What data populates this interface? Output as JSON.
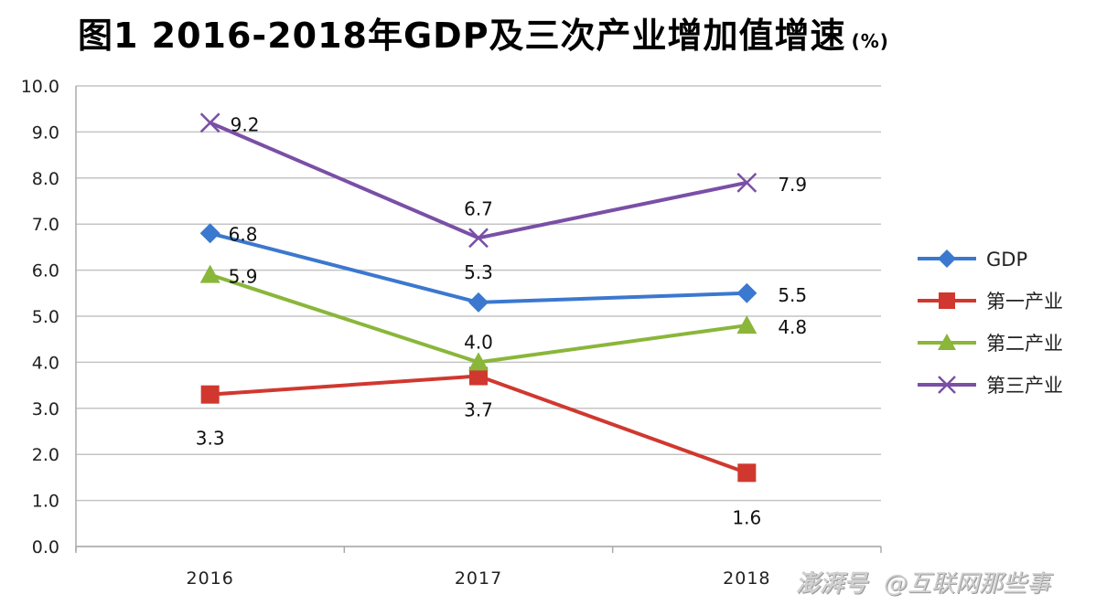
{
  "chart_data": {
    "type": "line",
    "title": "图1   2016-2018年GDP及三次产业增加值增速",
    "title_unit": "(%)",
    "xlabel": "",
    "ylabel": "",
    "categories": [
      "2016",
      "2017",
      "2018"
    ],
    "ylim": [
      0,
      10
    ],
    "yticks": [
      "0.0",
      "1.0",
      "2.0",
      "3.0",
      "4.0",
      "5.0",
      "6.0",
      "7.0",
      "8.0",
      "9.0",
      "10.0"
    ],
    "grid": true,
    "legend_position": "right",
    "series": [
      {
        "name": "GDP",
        "marker": "diamond",
        "color": "#3b78cf",
        "values": [
          6.8,
          5.3,
          5.5
        ],
        "labels": [
          "6.8",
          "5.3",
          "5.5"
        ]
      },
      {
        "name": "第一产业",
        "marker": "square",
        "color": "#d0382f",
        "values": [
          3.3,
          3.7,
          1.6
        ],
        "labels": [
          "3.3",
          "3.7",
          "1.6"
        ]
      },
      {
        "name": "第二产业",
        "marker": "triangle",
        "color": "#8ab63a",
        "values": [
          5.9,
          4.0,
          4.8
        ],
        "labels": [
          "5.9",
          "4.0",
          "4.8"
        ]
      },
      {
        "name": "第三产业",
        "marker": "x",
        "color": "#7a4fa6",
        "values": [
          9.2,
          6.7,
          7.9
        ],
        "labels": [
          "9.2",
          "6.7",
          "7.9"
        ]
      }
    ]
  },
  "watermark": {
    "logo": "澎湃号",
    "account": "@互联网那些事"
  }
}
